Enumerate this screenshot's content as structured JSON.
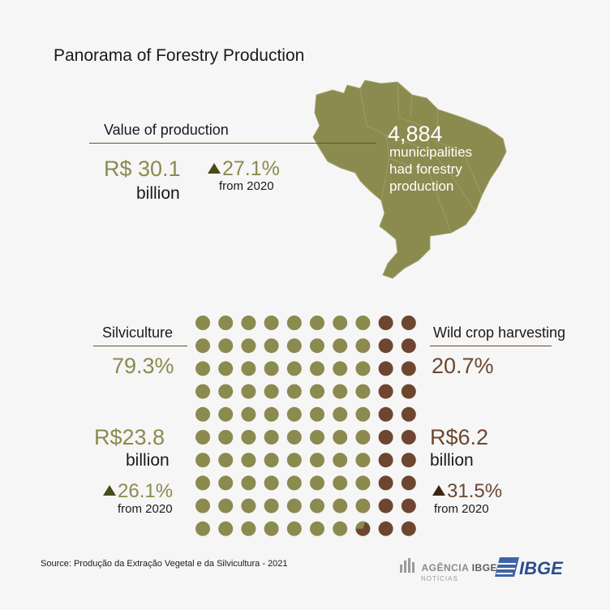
{
  "title": "Panorama of Forestry Production",
  "value_of_production": {
    "label": "Value of production",
    "value": "R$ 30.1",
    "unit": "billion",
    "change": "27.1%",
    "change_from": "from 2020"
  },
  "municipalities": {
    "count": "4,884",
    "text": "municipalities had forestry production"
  },
  "silviculture": {
    "label": "Silviculture",
    "share": "79.3%",
    "value": "R$23.8",
    "unit": "billion",
    "change": "26.1%",
    "change_from": "from 2020"
  },
  "wild_crop": {
    "label": "Wild crop harvesting",
    "share": "20.7%",
    "value": "R$6.2",
    "unit": "billion",
    "change": "31.5%",
    "change_from": "from 2020"
  },
  "chart_data": {
    "type": "waffle",
    "total_units": 100,
    "categories": [
      "Silviculture",
      "Wild crop harvesting"
    ],
    "values": [
      79.3,
      20.7
    ],
    "colors": [
      "#8b8a4f",
      "#6e4630"
    ]
  },
  "colors": {
    "olive": "#8b8a4f",
    "brown": "#6e4630",
    "map_fill": "#8b8a4f"
  },
  "source": "Source: Produção da Extração Vegetal e da Silvicultura - 2021",
  "logos": {
    "agencia_left": "AGÊNCIA",
    "agencia_right": "IBGE",
    "agencia_sub": "NOTÍCIAS",
    "ibge": "IBGE"
  }
}
